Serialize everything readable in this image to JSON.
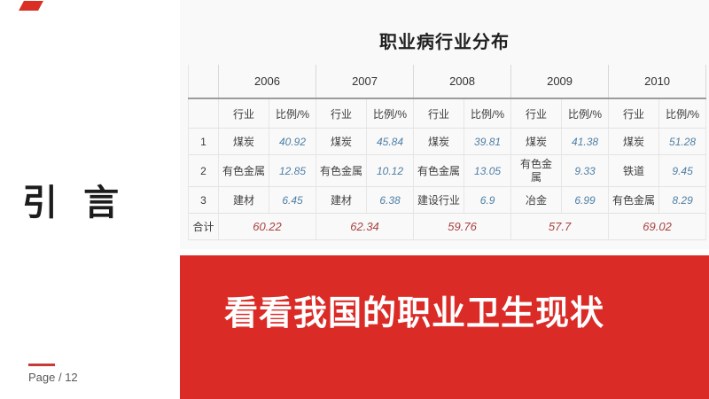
{
  "slide": {
    "section_title": "引 言",
    "page_label": "Page / 12",
    "banner_title": "看看我国的职业卫生现状"
  },
  "table": {
    "title": "职业病行业分布",
    "years": [
      "2006",
      "2007",
      "2008",
      "2009",
      "2010"
    ],
    "industry_header": "行业",
    "ratio_header": "比例/%",
    "total_label": "合计",
    "rows": [
      {
        "rank": "1",
        "cells": [
          {
            "industry": "煤炭",
            "ratio": "40.92"
          },
          {
            "industry": "煤炭",
            "ratio": "45.84"
          },
          {
            "industry": "煤炭",
            "ratio": "39.81"
          },
          {
            "industry": "煤炭",
            "ratio": "41.38"
          },
          {
            "industry": "煤炭",
            "ratio": "51.28"
          }
        ]
      },
      {
        "rank": "2",
        "cells": [
          {
            "industry": "有色金属",
            "ratio": "12.85"
          },
          {
            "industry": "有色金属",
            "ratio": "10.12"
          },
          {
            "industry": "有色金属",
            "ratio": "13.05"
          },
          {
            "industry": "有色金属",
            "ratio": "9.33",
            "wrap": true
          },
          {
            "industry": "铁道",
            "ratio": "9.45"
          }
        ]
      },
      {
        "rank": "3",
        "cells": [
          {
            "industry": "建材",
            "ratio": "6.45"
          },
          {
            "industry": "建材",
            "ratio": "6.38"
          },
          {
            "industry": "建设行业",
            "ratio": "6.9"
          },
          {
            "industry": "冶金",
            "ratio": "6.99"
          },
          {
            "industry": "有色金属",
            "ratio": "8.29"
          }
        ]
      }
    ],
    "totals": [
      "60.22",
      "62.34",
      "59.76",
      "57.7",
      "69.02"
    ]
  },
  "colors": {
    "banner_red": "#da2b27",
    "corner_accent_red": "#d93025",
    "footer_line_red": "#c53b36",
    "value_blue": "#4e7fa5",
    "total_red": "#a84341",
    "panel_bg": "#f9f9f9"
  }
}
